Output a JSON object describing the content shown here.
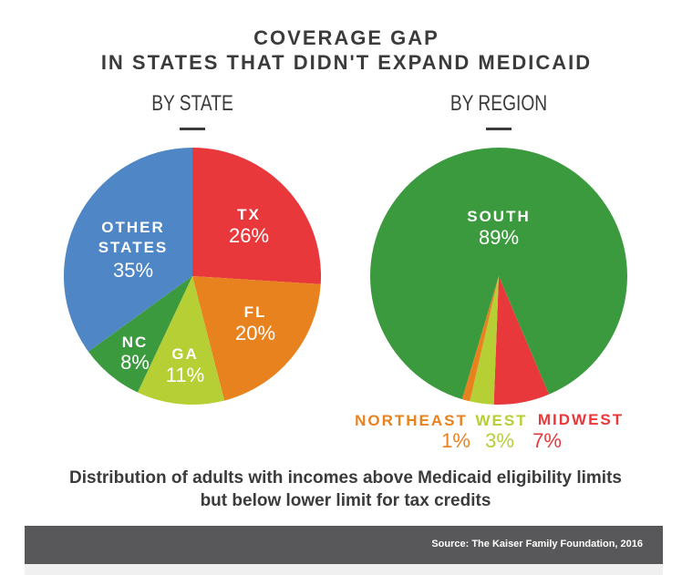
{
  "title_line1": "COVERAGE GAP",
  "title_line2": "IN STATES THAT DIDN'T EXPAND MEDICAID",
  "caption_line1": "Distribution of adults with incomes above Medicaid eligibility limits",
  "caption_line2": "but below lower limit for tax credits",
  "source": "Source: The Kaiser Family Foundation, 2016",
  "chart_data": [
    {
      "type": "pie",
      "title": "BY STATE",
      "slices": [
        {
          "label": "TX",
          "value": 26,
          "pct_label": "26%",
          "color": "#e8383b"
        },
        {
          "label": "FL",
          "value": 20,
          "pct_label": "20%",
          "color": "#e8821f"
        },
        {
          "label": "GA",
          "value": 11,
          "pct_label": "11%",
          "color": "#b5cf35"
        },
        {
          "label": "NC",
          "value": 8,
          "pct_label": "8%",
          "color": "#3c9a3e"
        },
        {
          "label": "OTHER STATES",
          "value": 35,
          "pct_label": "35%",
          "color": "#4f86c6"
        }
      ]
    },
    {
      "type": "pie",
      "title": "BY REGION",
      "slices": [
        {
          "label": "MIDWEST",
          "value": 7,
          "pct_label": "7%",
          "color": "#e8383b"
        },
        {
          "label": "WEST",
          "value": 3,
          "pct_label": "3%",
          "color": "#b5cf35"
        },
        {
          "label": "NORTHEAST",
          "value": 1,
          "pct_label": "1%",
          "color": "#e8821f"
        },
        {
          "label": "SOUTH",
          "value": 89,
          "pct_label": "89%",
          "color": "#3c9a3e"
        }
      ]
    }
  ]
}
